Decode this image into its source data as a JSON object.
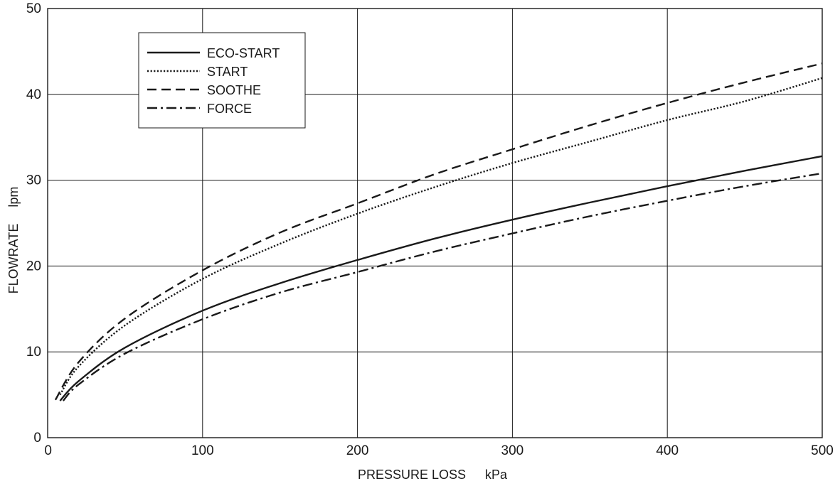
{
  "chart_data": {
    "type": "line",
    "xlabel": "PRESSURE LOSS",
    "xunit": "kPa",
    "ylabel": "FLOWRATE",
    "yunit": "lpm",
    "xlim": [
      0,
      500
    ],
    "ylim": [
      0,
      50
    ],
    "xticks": [
      0,
      100,
      200,
      300,
      400,
      500
    ],
    "yticks": [
      0,
      10,
      20,
      30,
      40,
      50
    ],
    "grid": true,
    "legend_position": "top-left",
    "series": [
      {
        "name": "ECO-START",
        "style": "solid",
        "x": [
          8,
          20,
          50,
          100,
          150,
          200,
          250,
          300,
          350,
          400,
          450,
          500
        ],
        "y": [
          4.3,
          6.6,
          10.5,
          14.8,
          18.0,
          20.7,
          23.2,
          25.4,
          27.4,
          29.3,
          31.1,
          32.8
        ]
      },
      {
        "name": "START",
        "style": "dotted",
        "x": [
          8,
          20,
          50,
          100,
          150,
          200,
          250,
          300,
          350,
          400,
          450,
          500
        ],
        "y": [
          5.0,
          8.3,
          13.1,
          18.5,
          22.6,
          26.1,
          29.2,
          32.0,
          34.5,
          37.0,
          39.2,
          41.9
        ]
      },
      {
        "name": "SOOTHE",
        "style": "dashed",
        "x": [
          5,
          20,
          50,
          100,
          150,
          200,
          250,
          300,
          350,
          400,
          450,
          500
        ],
        "y": [
          4.4,
          8.8,
          13.9,
          19.5,
          23.9,
          27.3,
          30.7,
          33.6,
          36.4,
          39.0,
          41.4,
          43.6
        ]
      },
      {
        "name": "FORCE",
        "style": "dashdot",
        "x": [
          10,
          20,
          50,
          100,
          150,
          200,
          250,
          300,
          350,
          400,
          450,
          500
        ],
        "y": [
          4.3,
          6.2,
          9.8,
          13.8,
          16.9,
          19.3,
          21.7,
          23.8,
          25.8,
          27.6,
          29.3,
          30.8
        ]
      }
    ]
  }
}
